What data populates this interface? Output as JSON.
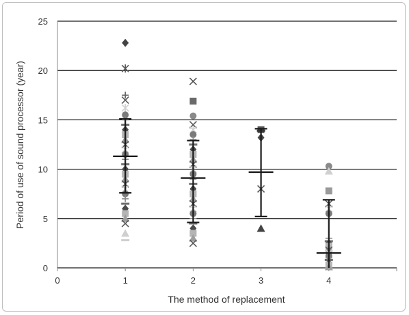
{
  "chart_data": {
    "type": "scatter",
    "title": "",
    "xlabel": "The method of replacement",
    "ylabel": "Period of use of sound processor (year)",
    "xlim": [
      0,
      5
    ],
    "ylim": [
      0,
      25
    ],
    "x_ticks": [
      "0",
      "1",
      "2",
      "3",
      "4"
    ],
    "y_ticks": [
      "0",
      "5",
      "10",
      "15",
      "20",
      "25"
    ],
    "grid": "horizontal",
    "legend": "none",
    "groups": [
      {
        "x": 1,
        "mean": 11.3,
        "sd_low": 7.6,
        "sd_high": 15.1,
        "points": [
          22.8,
          20.2,
          17.5,
          17.0,
          16.2,
          15.5,
          15.0,
          14.5,
          14.0,
          13.5,
          13.0,
          12.5,
          12.0,
          11.5,
          11.0,
          10.5,
          10.0,
          9.5,
          9.0,
          8.5,
          8.0,
          7.5,
          7.0,
          6.5,
          6.0,
          5.5,
          5.0,
          4.5,
          3.5,
          2.8
        ]
      },
      {
        "x": 2,
        "mean": 9.1,
        "sd_low": 4.6,
        "sd_high": 12.9,
        "points": [
          18.9,
          16.9,
          15.4,
          14.5,
          14.0,
          13.5,
          13.0,
          12.5,
          12.0,
          11.5,
          11.0,
          10.5,
          10.0,
          9.5,
          9.0,
          8.5,
          8.0,
          7.5,
          7.0,
          6.5,
          6.0,
          5.5,
          5.0,
          4.5,
          4.0,
          3.5,
          3.0,
          2.5
        ]
      },
      {
        "x": 3,
        "mean": 9.7,
        "sd_low": 5.2,
        "sd_high": 14.1,
        "points": [
          14.0,
          13.9,
          13.2,
          8.0,
          4.0
        ]
      },
      {
        "x": 4,
        "mean": 1.5,
        "sd_low": 0,
        "sd_high": 6.9,
        "points": [
          10.3,
          9.8,
          7.8,
          6.5,
          6.0,
          5.5,
          3.0,
          2.7,
          2.5,
          2.2,
          2.0,
          1.8,
          1.5,
          1.2,
          1.0,
          0.8,
          0.5,
          0.3,
          0.1
        ]
      }
    ]
  }
}
